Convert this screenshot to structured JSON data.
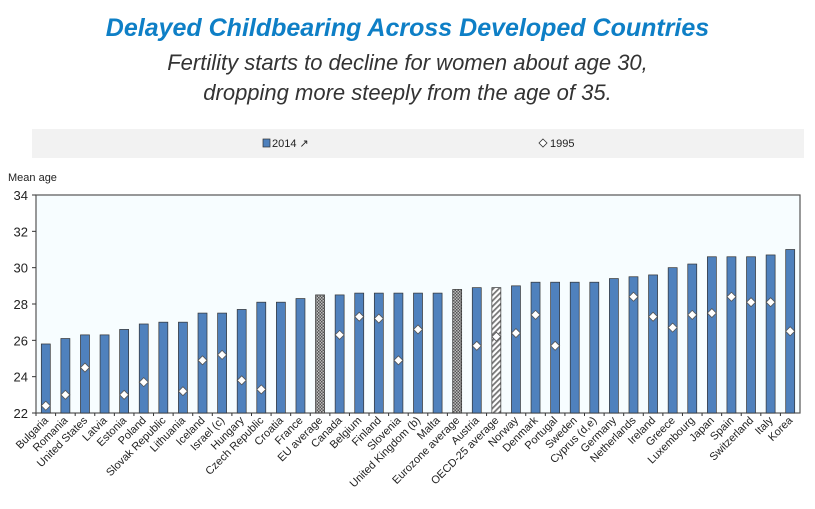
{
  "header": {
    "title": "Delayed Childbearing Across Developed Countries",
    "subtitle_line1": "Fertility starts to decline for women about age 30,",
    "subtitle_line2": "dropping more steeply from the age of 35."
  },
  "chart_data": {
    "type": "bar",
    "ylabel": "Mean age",
    "ylim": [
      22,
      34
    ],
    "yticks": [
      22,
      24,
      26,
      28,
      30,
      32,
      34
    ],
    "legend": {
      "placement": "top",
      "entries": [
        "2014 ↗",
        "1995"
      ]
    },
    "colors": {
      "bar": "#4f81bd",
      "average": "#8c8c8c",
      "plot_bg": "#f7fdff",
      "legend_bg": "#f2f2f2"
    },
    "categories": [
      "Bulgaria",
      "Romania",
      "United States",
      "Latvia",
      "Estonia",
      "Poland",
      "Slovak Republic",
      "Lithuania",
      "Iceland",
      "Israel (c)",
      "Hungary",
      "Czech Republic",
      "Croatia",
      "France",
      "EU average",
      "Canada",
      "Belgium",
      "Finland",
      "Slovenia",
      "United Kingdom (b)",
      "Malta",
      "Eurozone average",
      "Austria",
      "OECD-25 average",
      "Norway",
      "Denmark",
      "Portugal",
      "Sweden",
      "Cyprus (d,e)",
      "Germany",
      "Netherlands",
      "Ireland",
      "Greece",
      "Luxembourg",
      "Japan",
      "Spain",
      "Switzerland",
      "Italy",
      "Korea"
    ],
    "bar_style": [
      "solid",
      "solid",
      "solid",
      "solid",
      "solid",
      "solid",
      "solid",
      "solid",
      "solid",
      "solid",
      "solid",
      "solid",
      "solid",
      "solid",
      "checkered",
      "solid",
      "solid",
      "solid",
      "solid",
      "solid",
      "solid",
      "checkered",
      "solid",
      "hatched",
      "solid",
      "solid",
      "solid",
      "solid",
      "solid",
      "solid",
      "solid",
      "solid",
      "solid",
      "solid",
      "solid",
      "solid",
      "solid",
      "solid",
      "solid"
    ],
    "series": [
      {
        "name": "2014",
        "type": "bar",
        "values": [
          25.8,
          26.1,
          26.3,
          26.3,
          26.6,
          26.9,
          27.0,
          27.0,
          27.5,
          27.5,
          27.7,
          28.1,
          28.1,
          28.3,
          28.5,
          28.5,
          28.6,
          28.6,
          28.6,
          28.6,
          28.6,
          28.8,
          28.9,
          28.9,
          29.0,
          29.2,
          29.2,
          29.2,
          29.2,
          29.4,
          29.5,
          29.6,
          30.0,
          30.2,
          30.6,
          30.6,
          30.6,
          30.7,
          31.0
        ]
      },
      {
        "name": "1995",
        "type": "marker",
        "values": [
          22.4,
          23.0,
          24.5,
          null,
          23.0,
          23.7,
          null,
          23.2,
          24.9,
          25.2,
          23.8,
          23.3,
          null,
          null,
          null,
          26.3,
          27.3,
          27.2,
          24.9,
          26.6,
          null,
          null,
          25.7,
          26.2,
          26.4,
          27.4,
          25.7,
          null,
          null,
          null,
          28.4,
          27.3,
          26.7,
          27.4,
          27.5,
          28.4,
          28.1,
          28.1,
          26.5
        ]
      }
    ]
  }
}
